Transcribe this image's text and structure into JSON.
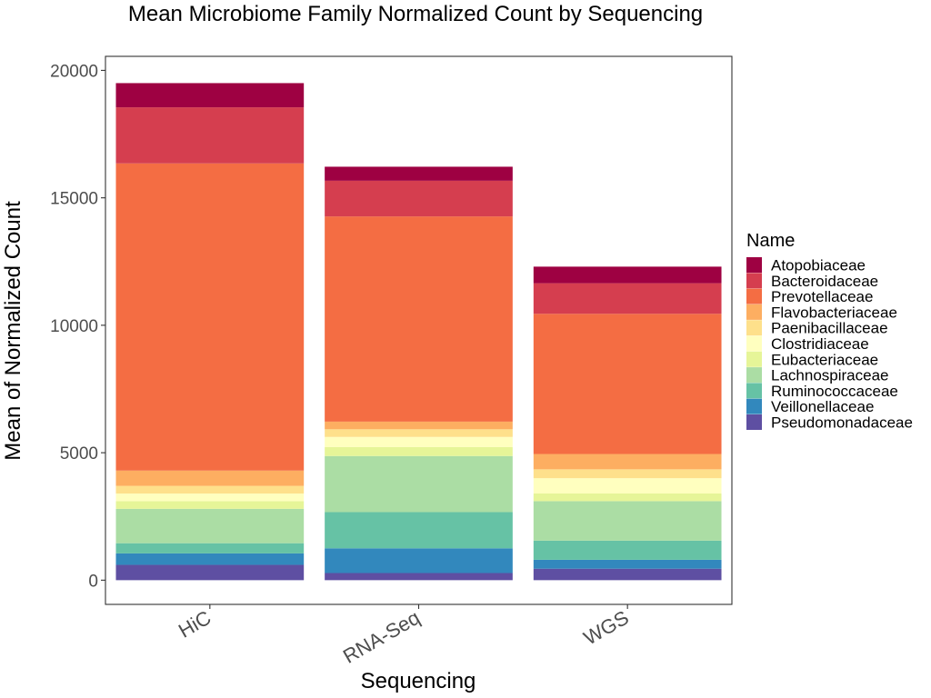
{
  "chart_data": {
    "type": "bar",
    "stacked": true,
    "title": "Mean Microbiome Family Normalized Count by Sequencing",
    "xlabel": "Sequencing",
    "ylabel": "Mean of Normalized Count",
    "categories": [
      "HiC",
      "RNA-Seq",
      "WGS"
    ],
    "ylim": [
      -950,
      20550
    ],
    "yticks": [
      0,
      5000,
      10000,
      15000,
      20000
    ],
    "grid": false,
    "legend": {
      "title": "Name",
      "position": "right"
    },
    "series": [
      {
        "name": "Pseudomonadaceae",
        "color": "#5E4FA2",
        "values": [
          600,
          280,
          450
        ]
      },
      {
        "name": "Veillonellaceae",
        "color": "#3288BD",
        "values": [
          450,
          970,
          350
        ]
      },
      {
        "name": "Ruminococcaceae",
        "color": "#66C2A5",
        "values": [
          400,
          1420,
          750
        ]
      },
      {
        "name": "Lachnospiraceae",
        "color": "#ABDDA4",
        "values": [
          1350,
          2200,
          1550
        ]
      },
      {
        "name": "Eubacteriaceae",
        "color": "#E6F598",
        "values": [
          300,
          350,
          300
        ]
      },
      {
        "name": "Clostridiaceae",
        "color": "#FFFFBF",
        "values": [
          300,
          400,
          600
        ]
      },
      {
        "name": "Paenibacillaceae",
        "color": "#FEE08B",
        "values": [
          300,
          300,
          350
        ]
      },
      {
        "name": "Flavobacteriaceae",
        "color": "#FDAE61",
        "values": [
          600,
          300,
          600
        ]
      },
      {
        "name": "Prevotellaceae",
        "color": "#F46D43",
        "values": [
          12050,
          8050,
          5500
        ]
      },
      {
        "name": "Bacteroidaceae",
        "color": "#D53E4F",
        "values": [
          2200,
          1400,
          1200
        ]
      },
      {
        "name": "Atopobiaceae",
        "color": "#9E0142",
        "values": [
          950,
          550,
          650
        ]
      }
    ]
  }
}
